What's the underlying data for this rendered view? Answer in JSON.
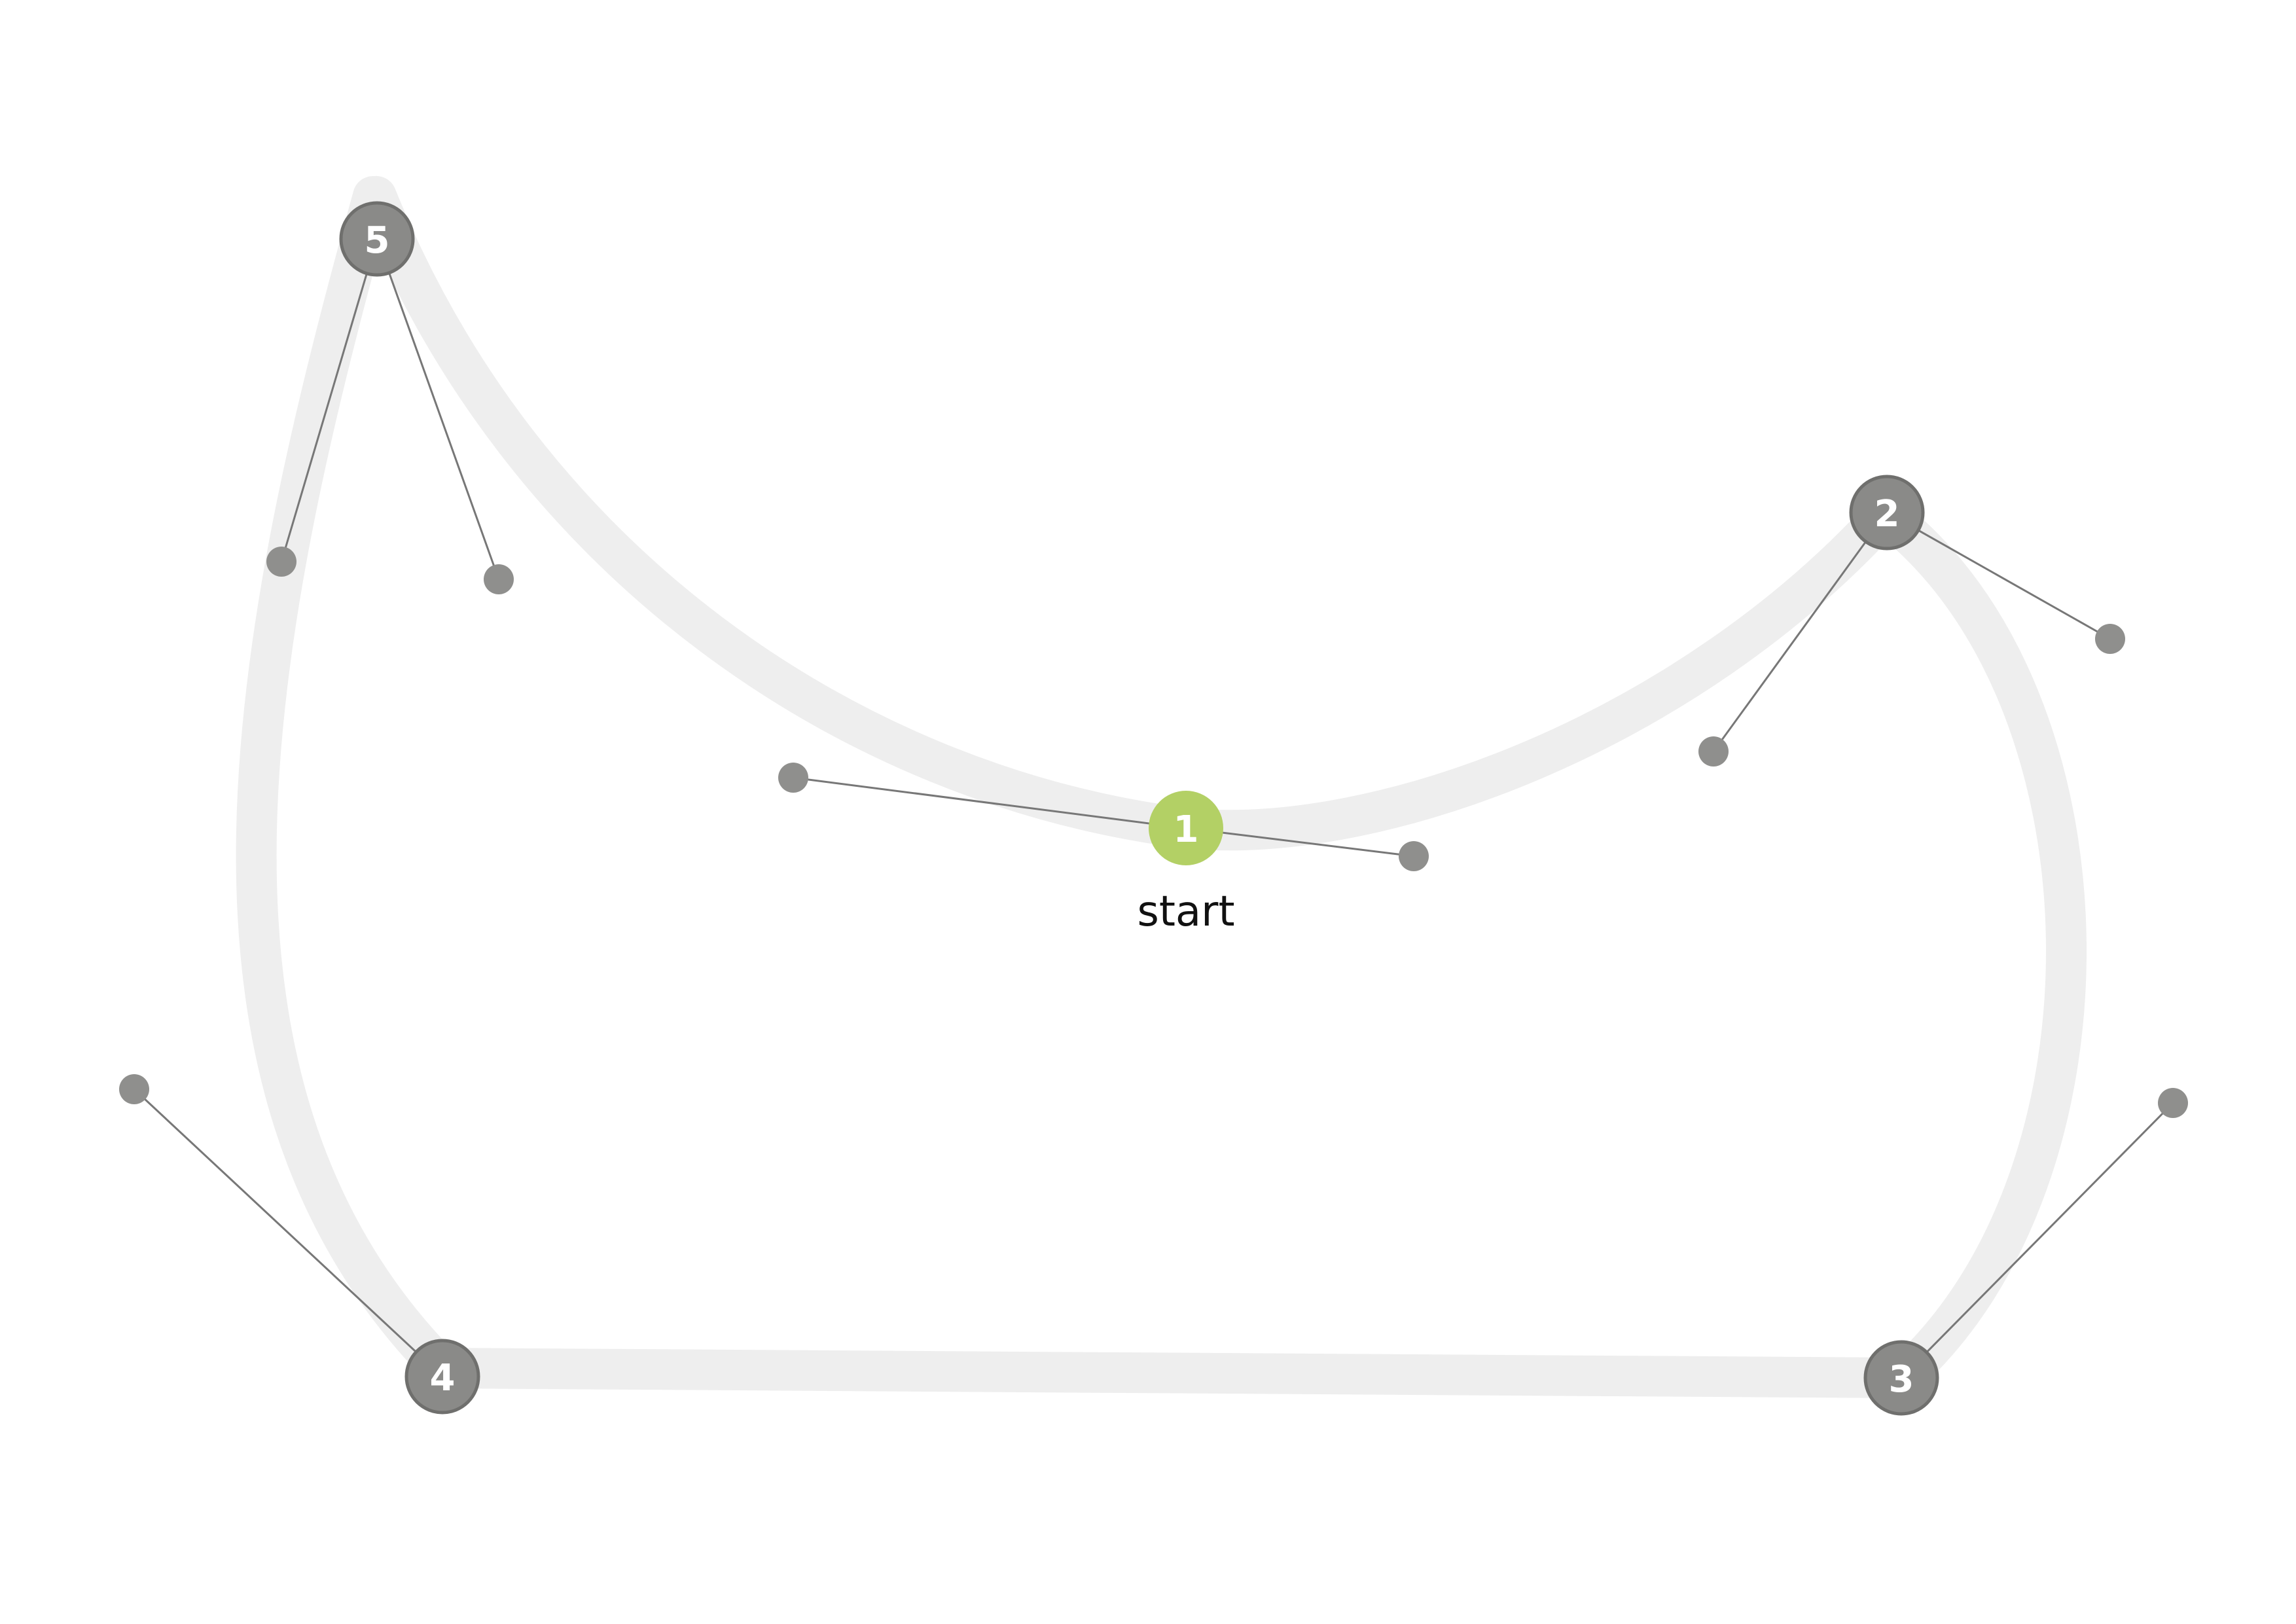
{
  "diagram": {
    "colors": {
      "path": "#eeeeee",
      "anchor_fill": "#8a8a88",
      "anchor_stroke": "#6f6f6d",
      "start_fill": "#b3d065",
      "handle_fill": "#8f8f8d",
      "handle_line": "#777777",
      "anchor_text": "#ffffff"
    },
    "start_label": "start",
    "anchors": [
      {
        "id": "1",
        "label": "1",
        "type": "start"
      },
      {
        "id": "2",
        "label": "2",
        "type": "anchor"
      },
      {
        "id": "3",
        "label": "3",
        "type": "anchor"
      },
      {
        "id": "4",
        "label": "4",
        "type": "anchor"
      },
      {
        "id": "5",
        "label": "5",
        "type": "anchor"
      }
    ]
  }
}
